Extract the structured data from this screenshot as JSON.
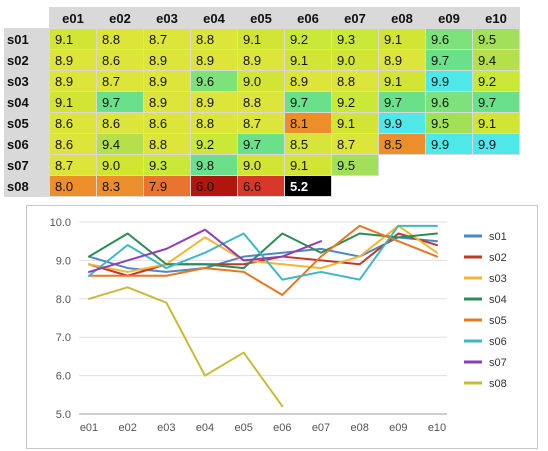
{
  "table": {
    "columns": [
      "e01",
      "e02",
      "e03",
      "e04",
      "e05",
      "e06",
      "e07",
      "e08",
      "e09",
      "e10"
    ],
    "rows": [
      {
        "label": "s01",
        "cells": [
          {
            "v": "9.1",
            "bg": "#d3e534"
          },
          {
            "v": "8.8",
            "bg": "#dde53a"
          },
          {
            "v": "8.7",
            "bg": "#dde53a"
          },
          {
            "v": "8.8",
            "bg": "#dde53a"
          },
          {
            "v": "9.1",
            "bg": "#d3e534"
          },
          {
            "v": "9.2",
            "bg": "#c9e838"
          },
          {
            "v": "9.3",
            "bg": "#c9e838"
          },
          {
            "v": "9.1",
            "bg": "#d3e534"
          },
          {
            "v": "9.6",
            "bg": "#7ee27a"
          },
          {
            "v": "9.5",
            "bg": "#a2e05a"
          }
        ]
      },
      {
        "label": "s02",
        "cells": [
          {
            "v": "8.9",
            "bg": "#dde53a"
          },
          {
            "v": "8.6",
            "bg": "#dde53a"
          },
          {
            "v": "8.9",
            "bg": "#dde53a"
          },
          {
            "v": "8.9",
            "bg": "#dde53a"
          },
          {
            "v": "8.9",
            "bg": "#dde53a"
          },
          {
            "v": "9.1",
            "bg": "#d3e534"
          },
          {
            "v": "9.0",
            "bg": "#d3e534"
          },
          {
            "v": "8.9",
            "bg": "#dde53a"
          },
          {
            "v": "9.7",
            "bg": "#6ae08a"
          },
          {
            "v": "9.4",
            "bg": "#b6e04a"
          }
        ]
      },
      {
        "label": "s03",
        "cells": [
          {
            "v": "8.9",
            "bg": "#dde53a"
          },
          {
            "v": "8.7",
            "bg": "#dde53a"
          },
          {
            "v": "8.9",
            "bg": "#dde53a"
          },
          {
            "v": "9.6",
            "bg": "#7ee27a"
          },
          {
            "v": "9.0",
            "bg": "#d3e534"
          },
          {
            "v": "8.9",
            "bg": "#dde53a"
          },
          {
            "v": "8.8",
            "bg": "#dde53a"
          },
          {
            "v": "9.1",
            "bg": "#d3e534"
          },
          {
            "v": "9.9",
            "bg": "#4ee8e8"
          },
          {
            "v": "9.2",
            "bg": "#c9e838"
          }
        ]
      },
      {
        "label": "s04",
        "cells": [
          {
            "v": "9.1",
            "bg": "#d3e534"
          },
          {
            "v": "9.7",
            "bg": "#6ae08a"
          },
          {
            "v": "8.9",
            "bg": "#dde53a"
          },
          {
            "v": "8.9",
            "bg": "#dde53a"
          },
          {
            "v": "8.8",
            "bg": "#dde53a"
          },
          {
            "v": "9.7",
            "bg": "#6ae08a"
          },
          {
            "v": "9.2",
            "bg": "#c9e838"
          },
          {
            "v": "9.7",
            "bg": "#6ae08a"
          },
          {
            "v": "9.6",
            "bg": "#7ee27a"
          },
          {
            "v": "9.7",
            "bg": "#6ae08a"
          }
        ]
      },
      {
        "label": "s05",
        "cells": [
          {
            "v": "8.6",
            "bg": "#dde53a"
          },
          {
            "v": "8.6",
            "bg": "#dde53a"
          },
          {
            "v": "8.6",
            "bg": "#dde53a"
          },
          {
            "v": "8.8",
            "bg": "#dde53a"
          },
          {
            "v": "8.7",
            "bg": "#dde53a"
          },
          {
            "v": "8.1",
            "bg": "#ec8f2a"
          },
          {
            "v": "9.1",
            "bg": "#d3e534"
          },
          {
            "v": "9.9",
            "bg": "#4ee8e8"
          },
          {
            "v": "9.5",
            "bg": "#a2e05a"
          },
          {
            "v": "9.1",
            "bg": "#d3e534"
          }
        ]
      },
      {
        "label": "s06",
        "cells": [
          {
            "v": "8.6",
            "bg": "#dde53a"
          },
          {
            "v": "9.4",
            "bg": "#b6e04a"
          },
          {
            "v": "8.8",
            "bg": "#dde53a"
          },
          {
            "v": "9.2",
            "bg": "#c9e838"
          },
          {
            "v": "9.7",
            "bg": "#6ae08a"
          },
          {
            "v": "8.5",
            "bg": "#d6e43c"
          },
          {
            "v": "8.7",
            "bg": "#dde53a"
          },
          {
            "v": "8.5",
            "bg": "#ec8f2a"
          },
          {
            "v": "9.9",
            "bg": "#4ee8e8"
          },
          {
            "v": "9.9",
            "bg": "#4ee8e8"
          }
        ]
      },
      {
        "label": "s07",
        "cells": [
          {
            "v": "8.7",
            "bg": "#dde53a"
          },
          {
            "v": "9.0",
            "bg": "#d3e534"
          },
          {
            "v": "9.3",
            "bg": "#c9e838"
          },
          {
            "v": "9.8",
            "bg": "#6ae08a"
          },
          {
            "v": "9.0",
            "bg": "#d3e534"
          },
          {
            "v": "9.1",
            "bg": "#d3e534"
          },
          {
            "v": "9.5",
            "bg": "#a2e05a"
          },
          null,
          null,
          null
        ]
      },
      {
        "label": "s08",
        "cells": [
          {
            "v": "8.0",
            "bg": "#ec8f2a"
          },
          {
            "v": "8.3",
            "bg": "#ec8f2a"
          },
          {
            "v": "7.9",
            "bg": "#e9742f"
          },
          {
            "v": "6.0",
            "bg": "#b0150e"
          },
          {
            "v": "6.6",
            "bg": "#d8382a"
          },
          {
            "v": "5.2",
            "bg": "#000000",
            "fg": "#ffffff",
            "bold": true
          },
          null,
          null,
          null,
          null
        ]
      }
    ]
  },
  "chart_data": {
    "type": "line",
    "categories": [
      "e01",
      "e02",
      "e03",
      "e04",
      "e05",
      "e06",
      "e07",
      "e08",
      "e09",
      "e10"
    ],
    "ylim": [
      5.0,
      10.0
    ],
    "yticks": [
      "5.0",
      "6.0",
      "7.0",
      "8.0",
      "9.0",
      "10.0"
    ],
    "grid": true,
    "legend_position": "right",
    "series": [
      {
        "name": "s01",
        "color": "#4e86c8",
        "values": [
          9.1,
          8.8,
          8.7,
          8.8,
          9.1,
          9.2,
          9.3,
          9.1,
          9.6,
          9.5
        ]
      },
      {
        "name": "s02",
        "color": "#c0392b",
        "values": [
          8.9,
          8.6,
          8.9,
          8.9,
          8.9,
          9.1,
          9.0,
          8.9,
          9.7,
          9.4
        ]
      },
      {
        "name": "s03",
        "color": "#f2b632",
        "values": [
          8.9,
          8.7,
          8.9,
          9.6,
          9.0,
          8.9,
          8.8,
          9.1,
          9.9,
          9.2
        ]
      },
      {
        "name": "s04",
        "color": "#2e8b57",
        "values": [
          9.1,
          9.7,
          8.9,
          8.9,
          8.8,
          9.7,
          9.2,
          9.7,
          9.6,
          9.7
        ]
      },
      {
        "name": "s05",
        "color": "#e87722",
        "values": [
          8.6,
          8.6,
          8.6,
          8.8,
          8.7,
          8.1,
          9.1,
          9.9,
          9.5,
          9.1
        ]
      },
      {
        "name": "s06",
        "color": "#3fb8c4",
        "values": [
          8.6,
          9.4,
          8.8,
          9.2,
          9.7,
          8.5,
          8.7,
          8.5,
          9.9,
          9.9
        ]
      },
      {
        "name": "s07",
        "color": "#8e3fb5",
        "values": [
          8.7,
          9.0,
          9.3,
          9.8,
          9.0,
          9.1,
          9.5,
          null,
          null,
          null
        ]
      },
      {
        "name": "s08",
        "color": "#c9bb3a",
        "values": [
          8.0,
          8.3,
          7.9,
          6.0,
          6.6,
          5.2,
          null,
          null,
          null,
          null
        ]
      }
    ]
  }
}
